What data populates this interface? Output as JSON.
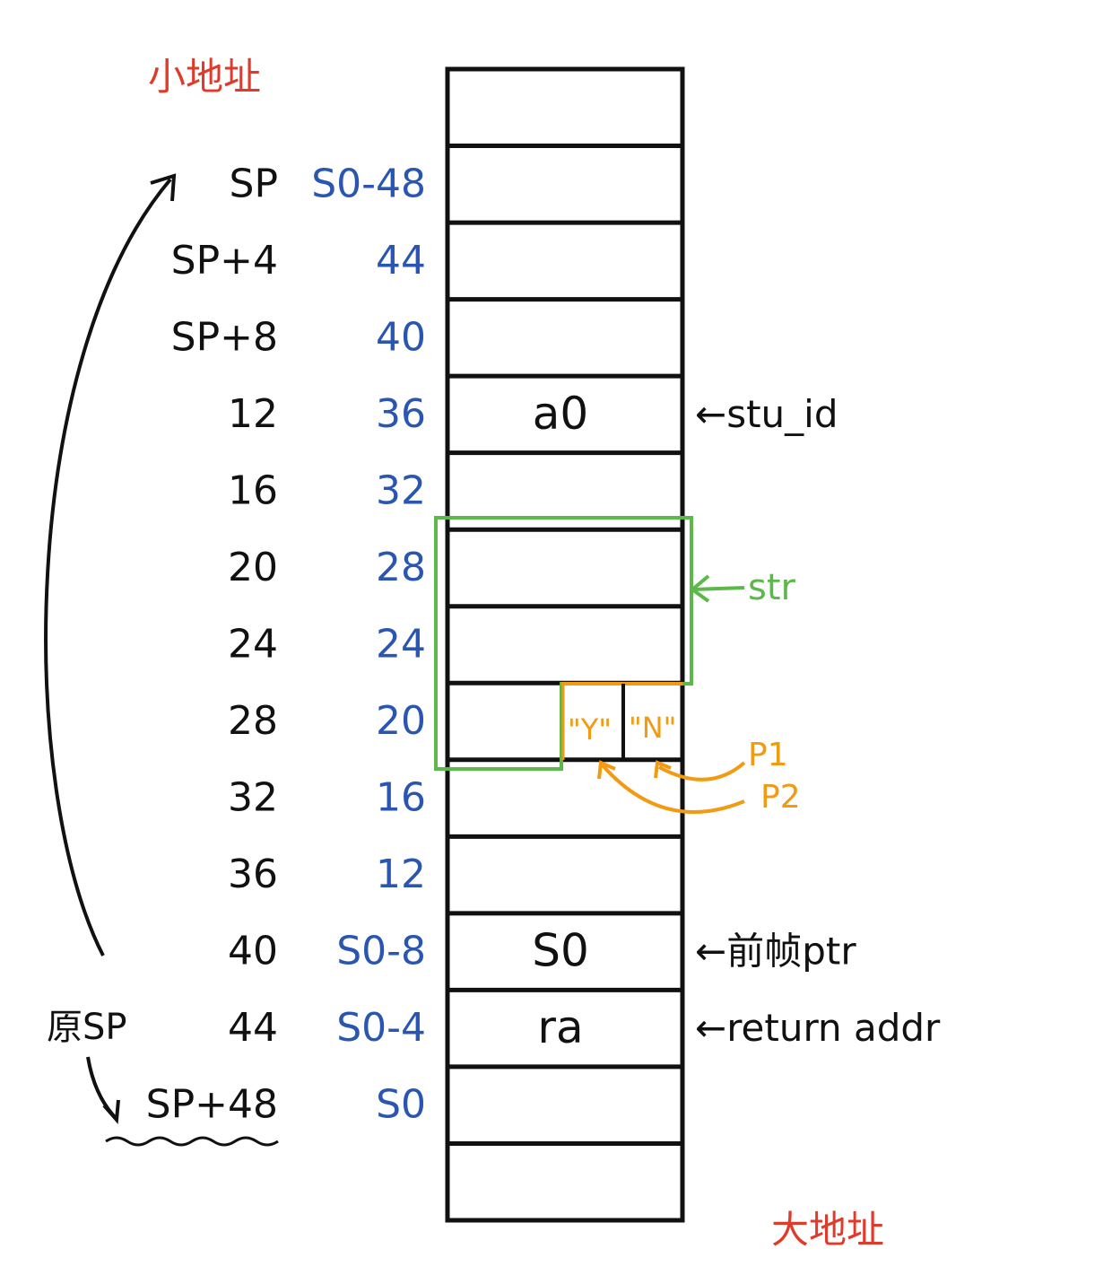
{
  "labels": {
    "top_address": "小地址",
    "bottom_address": "大地址",
    "orig_sp": "原SP",
    "orig_sp_offset": "SP+48"
  },
  "colors": {
    "black": "#111111",
    "blue": "#2a55b0",
    "red": "#e03a2a",
    "green": "#5cb84a",
    "orange": "#f29a12"
  },
  "rows": [
    {
      "sp": "",
      "s0": "",
      "cell": "",
      "note": ""
    },
    {
      "sp": "SP",
      "s0": "S0-48",
      "cell": "",
      "note": ""
    },
    {
      "sp": "SP+4",
      "s0": "44",
      "cell": "",
      "note": ""
    },
    {
      "sp": "SP+8",
      "s0": "40",
      "cell": "",
      "note": ""
    },
    {
      "sp": "12",
      "s0": "36",
      "cell": "a0",
      "note": "←stu_id"
    },
    {
      "sp": "16",
      "s0": "32",
      "cell": "",
      "note": ""
    },
    {
      "sp": "20",
      "s0": "28",
      "cell": "",
      "note": ""
    },
    {
      "sp": "24",
      "s0": "24",
      "cell": "",
      "note": ""
    },
    {
      "sp": "28",
      "s0": "20",
      "cell": "",
      "note": ""
    },
    {
      "sp": "32",
      "s0": "16",
      "cell": "",
      "note": ""
    },
    {
      "sp": "36",
      "s0": "12",
      "cell": "",
      "note": ""
    },
    {
      "sp": "40",
      "s0": "S0-8",
      "cell": "S0",
      "note": "←前帧ptr"
    },
    {
      "sp": "44",
      "s0": "S0-4",
      "cell": "ra",
      "note": "←return addr"
    },
    {
      "sp": "SP+48",
      "s0": "S0",
      "cell": "",
      "note": ""
    },
    {
      "sp": "",
      "s0": "",
      "cell": "",
      "note": ""
    }
  ],
  "str_label": "str",
  "char_y": "\"Y\"",
  "char_n": "\"N\"",
  "p1_label": "P1",
  "p2_label": "P2"
}
